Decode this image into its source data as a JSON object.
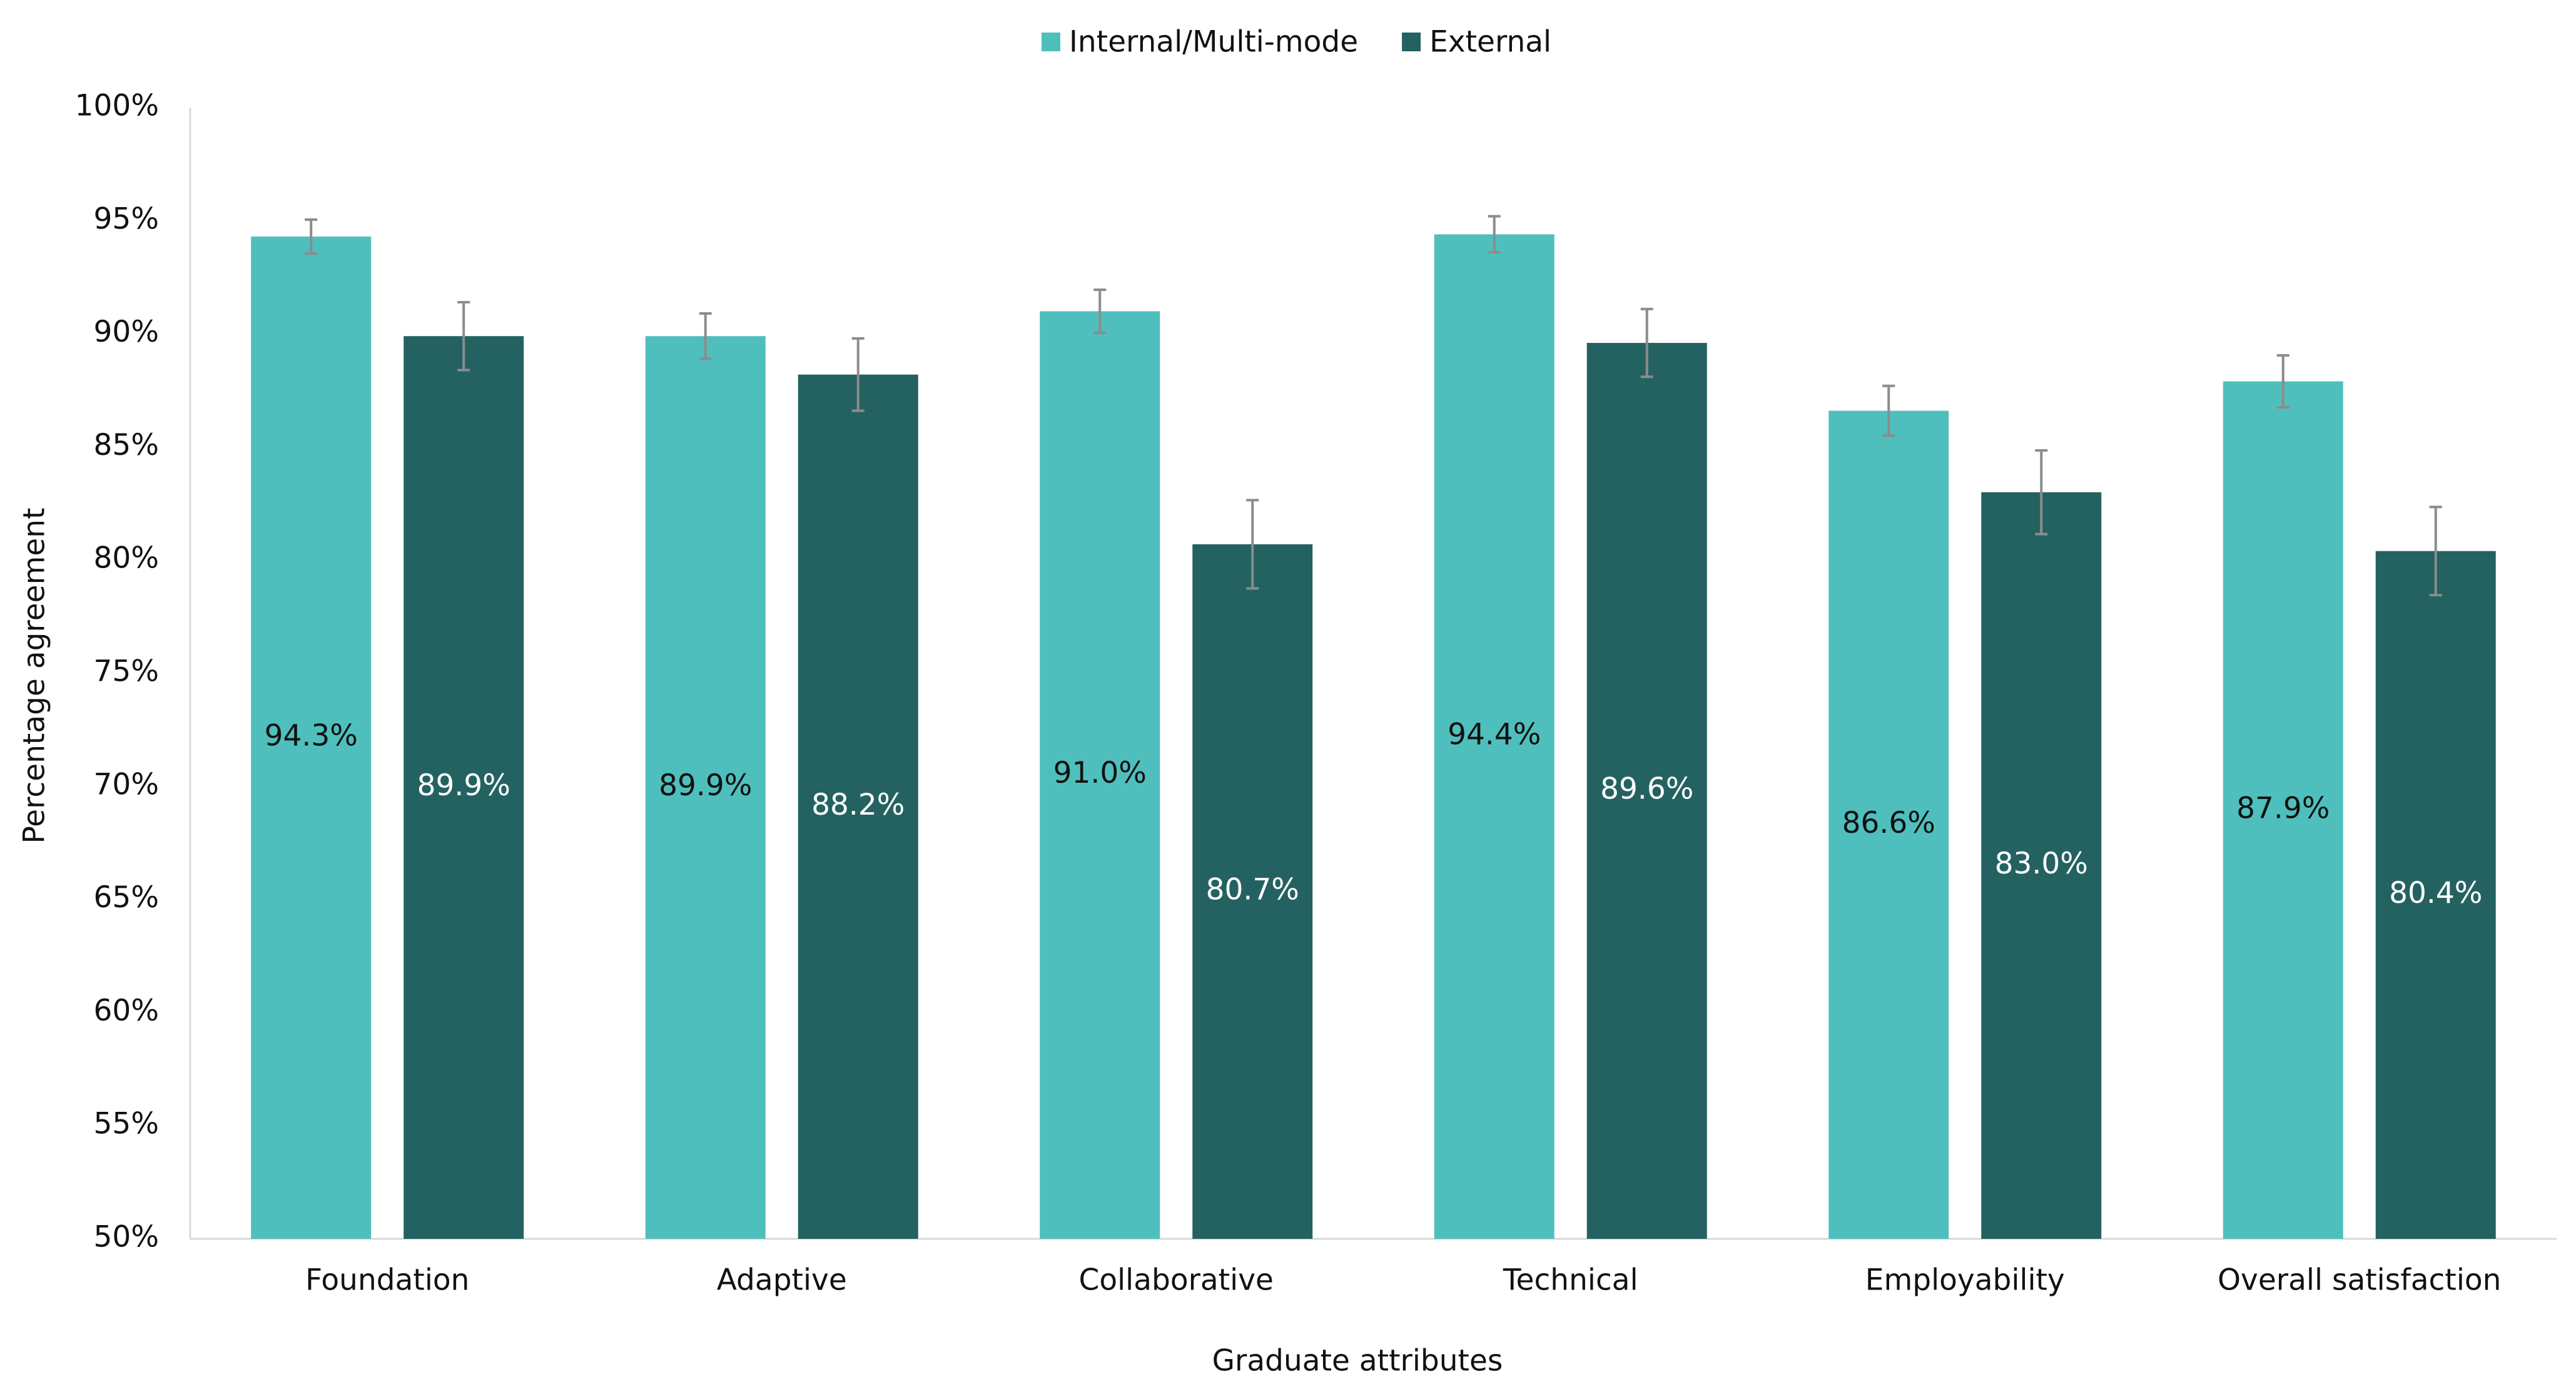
{
  "chart_data": {
    "type": "bar",
    "x_label": "Graduate attributes",
    "y_label": "Percentage agreement",
    "categories": [
      "Foundation",
      "Adaptive",
      "Collaborative",
      "Technical",
      "Employability",
      "Overall satisfaction"
    ],
    "series": [
      {
        "name": "Internal/Multi-mode",
        "color": "#4fbfbd",
        "label_color": "#111111",
        "values": [
          94.3,
          89.9,
          91.0,
          94.4,
          86.6,
          87.9
        ],
        "value_labels": [
          "94.3%",
          "89.9%",
          "91.0%",
          "94.4%",
          "86.6%",
          "87.9%"
        ],
        "errors": [
          0.75,
          1.0,
          0.95,
          0.8,
          1.1,
          1.15
        ]
      },
      {
        "name": "External",
        "color": "#236260",
        "label_color": "#ffffff",
        "values": [
          89.9,
          88.2,
          80.7,
          89.6,
          83.0,
          80.4
        ],
        "value_labels": [
          "89.9%",
          "88.2%",
          "80.7%",
          "89.6%",
          "83.0%",
          "80.4%"
        ],
        "errors": [
          1.5,
          1.6,
          1.95,
          1.5,
          1.85,
          1.95
        ]
      }
    ],
    "ylim": [
      50,
      100
    ],
    "yticks": [
      {
        "value": 50,
        "label": "50%"
      },
      {
        "value": 55,
        "label": "55%"
      },
      {
        "value": 60,
        "label": "60%"
      },
      {
        "value": 65,
        "label": "65%"
      },
      {
        "value": 70,
        "label": "70%"
      },
      {
        "value": 75,
        "label": "75%"
      },
      {
        "value": 80,
        "label": "80%"
      },
      {
        "value": 85,
        "label": "85%"
      },
      {
        "value": 90,
        "label": "90%"
      },
      {
        "value": 95,
        "label": "95%"
      },
      {
        "value": 100,
        "label": "100%"
      }
    ],
    "grid": false,
    "legend": "top",
    "error_bar_color": "#8c8c8c"
  }
}
